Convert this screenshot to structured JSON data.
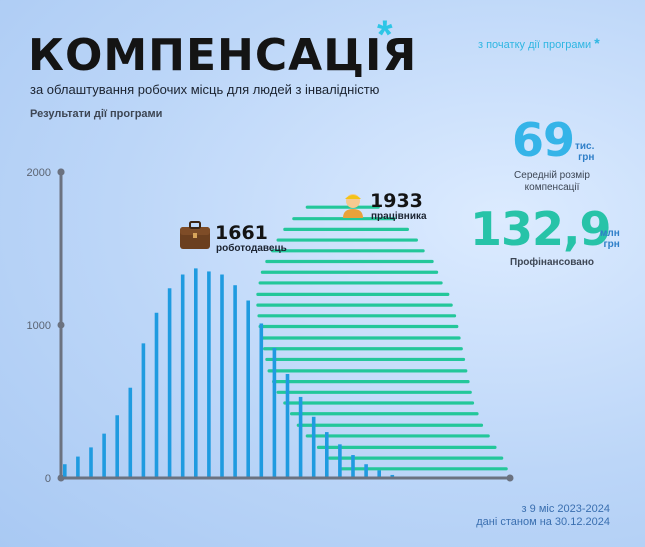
{
  "header": {
    "title": "КОМПЕНСАЦІЯ",
    "asterisk": "*",
    "subtitle": "за облаштування робочих місць для людей з інвалідністю",
    "section": "Результати дії програми",
    "since_label": "з початку дії програми",
    "since_star": "*"
  },
  "stats": {
    "avg": {
      "value": "69",
      "unit_line1": "тис.",
      "unit_line2": "грн",
      "label_line1": "Середній розмір",
      "label_line2": "компенсації"
    },
    "funded": {
      "value": "132,9",
      "unit_line1": "млн",
      "unit_line2": "грн",
      "label": "Профінансовано"
    }
  },
  "footer": {
    "line1": "з 9 міс 2023-2024",
    "line2": "дані станом на 30.12.2024"
  },
  "colors": {
    "employers": "#1f9be0",
    "workers": "#23c79a",
    "axis": "#6b7280"
  },
  "icons": {
    "employers": "briefcase-icon",
    "workers": "worker-person-icon"
  },
  "chart_data": {
    "type": "bar",
    "title": "",
    "ylim": [
      0,
      2000
    ],
    "yticks": [
      "0",
      "1000",
      "2000"
    ],
    "annotations": [
      {
        "value": "1661",
        "label": "роботодавець"
      },
      {
        "value": "1933",
        "label": "працівника"
      }
    ],
    "series": [
      {
        "name": "роботодавець",
        "orientation": "vertical",
        "total": 1661,
        "values": [
          90,
          140,
          200,
          290,
          410,
          590,
          880,
          1080,
          1240,
          1330,
          1370,
          1350,
          1330,
          1260,
          1160,
          1010,
          850,
          680,
          530,
          400,
          300,
          220,
          150,
          90,
          50,
          20
        ]
      },
      {
        "name": "працівника",
        "orientation": "horizontal",
        "total": 1933,
        "levels": [
          60,
          130,
          200,
          275,
          345,
          420,
          490,
          560,
          630,
          700,
          775,
          845,
          915,
          990,
          1060,
          1130,
          1200,
          1275,
          1345,
          1415,
          1485,
          1555,
          1625,
          1695,
          1770
        ],
        "spans": [
          [
            1240,
            1990
          ],
          [
            1190,
            1970
          ],
          [
            1140,
            1940
          ],
          [
            1090,
            1910
          ],
          [
            1050,
            1880
          ],
          [
            1020,
            1860
          ],
          [
            990,
            1840
          ],
          [
            960,
            1830
          ],
          [
            940,
            1820
          ],
          [
            920,
            1810
          ],
          [
            910,
            1800
          ],
          [
            900,
            1790
          ],
          [
            890,
            1780
          ],
          [
            880,
            1770
          ],
          [
            875,
            1760
          ],
          [
            870,
            1745
          ],
          [
            870,
            1730
          ],
          [
            880,
            1700
          ],
          [
            890,
            1680
          ],
          [
            910,
            1660
          ],
          [
            935,
            1620
          ],
          [
            960,
            1590
          ],
          [
            990,
            1550
          ],
          [
            1030,
            1490
          ],
          [
            1090,
            1420
          ]
        ]
      }
    ]
  }
}
